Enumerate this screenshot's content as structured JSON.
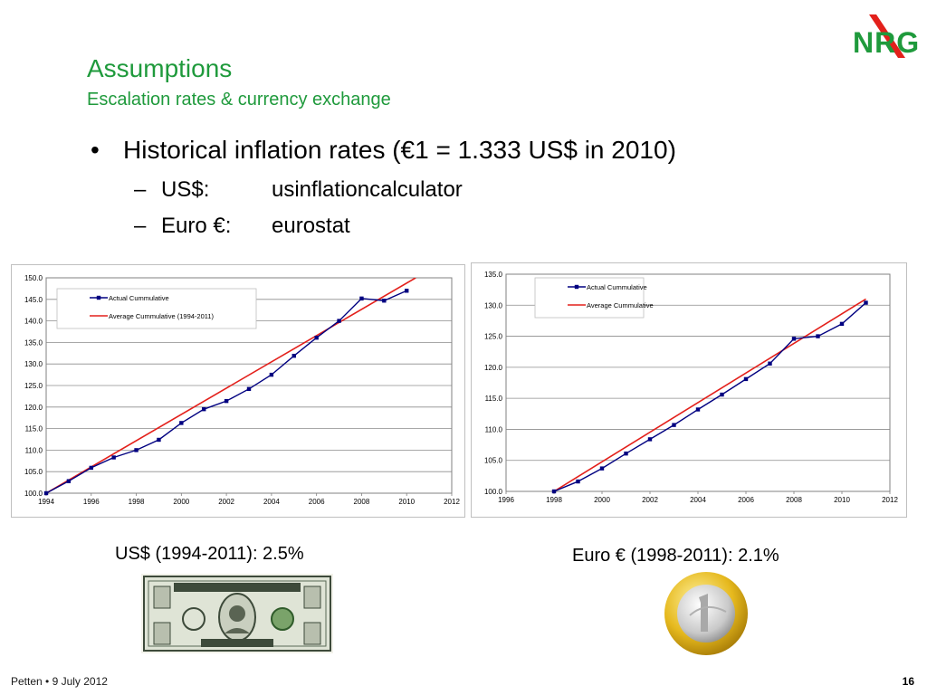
{
  "header": {
    "title": "Assumptions",
    "subtitle": "Escalation rates & currency exchange",
    "logo_text": "NRG"
  },
  "body": {
    "bullet": "Historical inflation rates (€1 = 1.333 US$ in 2010)",
    "sub_items": [
      {
        "label": "US$:",
        "value": "usinflationcalculator"
      },
      {
        "label": "Euro €:",
        "value": "eurostat"
      }
    ]
  },
  "captions": {
    "us": "US$ (1994-2011): 2.5%",
    "euro": "Euro € (1998-2011): 2.1%"
  },
  "footer": {
    "left": "Petten • 9 July 2012",
    "page": "16"
  },
  "colors": {
    "title_green": "#1f9a3c",
    "actual_series": "#000080",
    "average_series": "#e3201b",
    "logo_red": "#e3201b",
    "logo_green": "#1f9a3c"
  },
  "chart_data": [
    {
      "type": "line",
      "xlim": [
        1994,
        2012
      ],
      "ylim": [
        100,
        150
      ],
      "xticks": [
        1994,
        1996,
        1998,
        2000,
        2002,
        2004,
        2006,
        2008,
        2010,
        2012
      ],
      "yticks": [
        100.0,
        105.0,
        110.0,
        115.0,
        120.0,
        125.0,
        130.0,
        135.0,
        140.0,
        145.0,
        150.0
      ],
      "grid": "horizontal",
      "legend_position": "top-left",
      "series": [
        {
          "name": "Actual Cummulative",
          "marker": true,
          "x": [
            1994,
            1995,
            1996,
            1997,
            1998,
            1999,
            2000,
            2001,
            2002,
            2003,
            2004,
            2005,
            2006,
            2007,
            2008,
            2009,
            2010
          ],
          "y": [
            100.0,
            102.8,
            105.9,
            108.3,
            110.0,
            112.4,
            116.3,
            119.5,
            121.4,
            124.2,
            127.5,
            131.9,
            136.1,
            140.0,
            145.2,
            144.7,
            147.0
          ]
        },
        {
          "name": "Average Cummulative (1994-2011)",
          "marker": false,
          "x": [
            1994,
            2010.4
          ],
          "y": [
            100.0,
            150.0
          ]
        }
      ]
    },
    {
      "type": "line",
      "xlim": [
        1996,
        2012
      ],
      "ylim": [
        100,
        135
      ],
      "xticks": [
        1996,
        1998,
        2000,
        2002,
        2004,
        2006,
        2008,
        2010,
        2012
      ],
      "yticks": [
        100.0,
        105.0,
        110.0,
        115.0,
        120.0,
        125.0,
        130.0,
        135.0
      ],
      "grid": "horizontal",
      "legend_position": "top-left",
      "series": [
        {
          "name": "Actual Cummulative",
          "marker": true,
          "x": [
            1998,
            1999,
            2000,
            2001,
            2002,
            2003,
            2004,
            2005,
            2006,
            2007,
            2008,
            2009,
            2010,
            2011
          ],
          "y": [
            100.0,
            101.6,
            103.7,
            106.1,
            108.4,
            110.7,
            113.2,
            115.6,
            118.1,
            120.6,
            124.6,
            125.0,
            127.0,
            130.4
          ]
        },
        {
          "name": "Average Cummulative",
          "marker": false,
          "x": [
            1998,
            2011
          ],
          "y": [
            100.0,
            131.0
          ]
        }
      ]
    }
  ]
}
